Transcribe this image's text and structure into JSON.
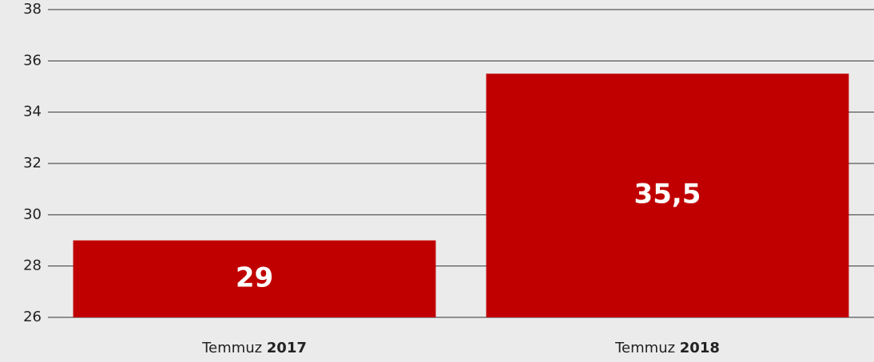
{
  "chart_data": {
    "type": "bar",
    "categories": [
      "Temmuz 2017",
      "Temmuz 2018"
    ],
    "values": [
      29,
      35.5
    ],
    "value_labels": [
      "29",
      "35,5"
    ],
    "color": "#c00000",
    "ylim": [
      26,
      38
    ],
    "yticks": [
      26,
      28,
      30,
      32,
      34,
      36,
      38
    ],
    "grid": true
  }
}
